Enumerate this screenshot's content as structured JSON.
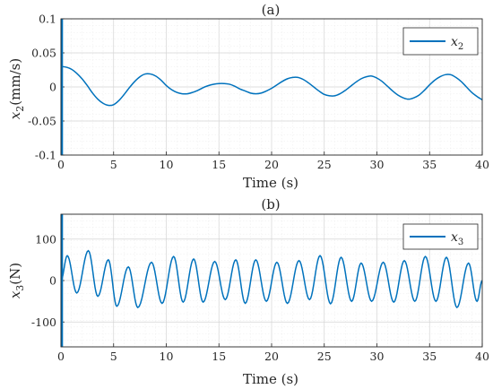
{
  "chart_data": [
    {
      "type": "line",
      "title": "(a)",
      "xlabel": "Time (s)",
      "ylabel": "x_2(mm/s)",
      "ylabel_parts": {
        "var": "x",
        "sub": "2",
        "unit": "(mm/s)"
      },
      "xlim": [
        0,
        40
      ],
      "ylim": [
        -0.1,
        0.1
      ],
      "xticks": [
        0,
        5,
        10,
        15,
        20,
        25,
        30,
        35,
        40
      ],
      "xtick_labels": [
        "0",
        "5",
        "10",
        "15",
        "20",
        "25",
        "30",
        "35",
        "40"
      ],
      "yticks": [
        -0.1,
        -0.05,
        0,
        0.05,
        0.1
      ],
      "ytick_labels": [
        "-0.1",
        "-0.05",
        "0",
        "0.05",
        "0.1"
      ],
      "grid": true,
      "legend_position": "top-right",
      "color": "#0072BD",
      "series": [
        {
          "name": "x_2",
          "legend_parts": {
            "var": "x",
            "sub": "2"
          },
          "x": [
            0,
            0.5,
            1,
            1.5,
            2,
            2.5,
            3,
            3.5,
            4,
            4.5,
            5,
            5.5,
            6,
            6.5,
            7,
            7.5,
            8,
            8.5,
            9,
            9.5,
            10,
            10.5,
            11,
            11.5,
            12,
            12.5,
            13,
            13.5,
            14,
            14.5,
            15,
            15.5,
            16,
            16.5,
            17,
            17.5,
            18,
            18.5,
            19,
            19.5,
            20,
            20.5,
            21,
            21.5,
            22,
            22.5,
            23,
            23.5,
            24,
            24.5,
            25,
            25.5,
            26,
            26.5,
            27,
            27.5,
            28,
            28.5,
            29,
            29.5,
            30,
            30.5,
            31,
            31.5,
            32,
            32.5,
            33,
            33.5,
            34,
            34.5,
            35,
            35.5,
            36,
            36.5,
            37,
            37.5,
            38,
            38.5,
            39,
            39.5,
            40
          ],
          "y": [
            0.03,
            0.029,
            0.026,
            0.02,
            0.012,
            0.002,
            -0.009,
            -0.018,
            -0.024,
            -0.027,
            -0.026,
            -0.02,
            -0.011,
            -0.001,
            0.008,
            0.015,
            0.019,
            0.019,
            0.016,
            0.01,
            0.002,
            -0.004,
            -0.008,
            -0.01,
            -0.01,
            -0.008,
            -0.005,
            -0.001,
            0.002,
            0.004,
            0.005,
            0.005,
            0.004,
            0.001,
            -0.003,
            -0.006,
            -0.009,
            -0.01,
            -0.009,
            -0.006,
            -0.002,
            0.003,
            0.008,
            0.012,
            0.014,
            0.014,
            0.011,
            0.006,
            0.0,
            -0.006,
            -0.011,
            -0.013,
            -0.013,
            -0.01,
            -0.005,
            0.001,
            0.007,
            0.012,
            0.015,
            0.016,
            0.013,
            0.008,
            0.001,
            -0.006,
            -0.012,
            -0.016,
            -0.018,
            -0.016,
            -0.012,
            -0.005,
            0.003,
            0.01,
            0.015,
            0.018,
            0.018,
            0.014,
            0.008,
            0.0,
            -0.008,
            -0.014,
            -0.019
          ]
        }
      ]
    },
    {
      "type": "line",
      "title": "(b)",
      "xlabel": "Time (s)",
      "ylabel": "x_3(N)",
      "ylabel_parts": {
        "var": "x",
        "sub": "3",
        "unit": "(N)"
      },
      "xlim": [
        0,
        40
      ],
      "ylim": [
        -160,
        160
      ],
      "xticks": [
        0,
        5,
        10,
        15,
        20,
        25,
        30,
        35,
        40
      ],
      "xtick_labels": [
        "0",
        "5",
        "10",
        "15",
        "20",
        "25",
        "30",
        "35",
        "40"
      ],
      "yticks": [
        -100,
        0,
        100
      ],
      "ytick_labels": [
        "-100",
        "0",
        "100"
      ],
      "grid": true,
      "legend_position": "top-right",
      "color": "#0072BD",
      "series": [
        {
          "name": "x_3",
          "legend_parts": {
            "var": "x",
            "sub": "3"
          },
          "peaks": [
            [
              0,
              0
            ],
            [
              0.6,
              60
            ],
            [
              1.5,
              -30
            ],
            [
              2.6,
              72
            ],
            [
              3.5,
              -38
            ],
            [
              4.5,
              50
            ],
            [
              5.3,
              -62
            ],
            [
              6.4,
              33
            ],
            [
              7.3,
              -65
            ],
            [
              8.6,
              44
            ],
            [
              9.6,
              -55
            ],
            [
              10.7,
              58
            ],
            [
              11.6,
              -52
            ],
            [
              12.6,
              52
            ],
            [
              13.5,
              -52
            ],
            [
              14.6,
              46
            ],
            [
              15.6,
              -46
            ],
            [
              16.6,
              50
            ],
            [
              17.5,
              -55
            ],
            [
              18.5,
              50
            ],
            [
              19.5,
              -50
            ],
            [
              20.5,
              44
            ],
            [
              21.5,
              -55
            ],
            [
              22.6,
              48
            ],
            [
              23.6,
              -46
            ],
            [
              24.6,
              60
            ],
            [
              25.6,
              -56
            ],
            [
              26.6,
              56
            ],
            [
              27.6,
              -50
            ],
            [
              28.5,
              42
            ],
            [
              29.5,
              -50
            ],
            [
              30.6,
              44
            ],
            [
              31.6,
              -52
            ],
            [
              32.6,
              48
            ],
            [
              33.6,
              -50
            ],
            [
              34.6,
              58
            ],
            [
              35.6,
              -50
            ],
            [
              36.6,
              56
            ],
            [
              37.6,
              -65
            ],
            [
              38.7,
              42
            ],
            [
              39.5,
              -50
            ],
            [
              40,
              0
            ]
          ]
        }
      ]
    }
  ]
}
